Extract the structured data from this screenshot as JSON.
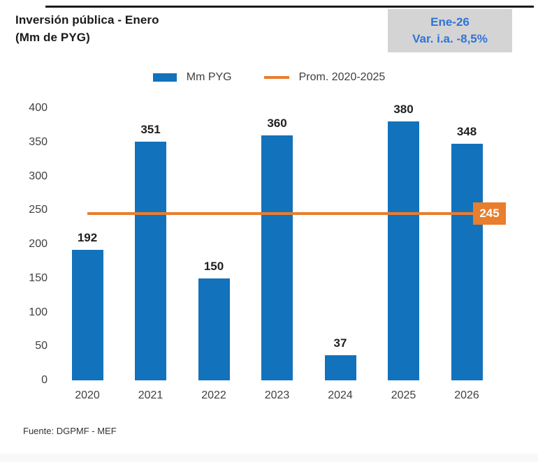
{
  "header": {
    "title_line1": "Inversión pública - Enero",
    "title_line2": "(Mm de PYG)",
    "badge": {
      "line1": "Ene-26",
      "line2": "Var. i.a. -8,5%",
      "text_color": "#2e74d8",
      "bg_color": "#d5d4d4"
    }
  },
  "legend": {
    "bar_label": "Mm PYG",
    "line_label": "Prom. 2020-2025"
  },
  "chart_data": {
    "type": "bar",
    "title": "Inversión pública - Enero (Mm de PYG)",
    "categories": [
      "2020",
      "2021",
      "2022",
      "2023",
      "2024",
      "2025",
      "2026"
    ],
    "series": [
      {
        "name": "Mm PYG",
        "values": [
          192,
          351,
          150,
          360,
          37,
          380,
          348
        ]
      }
    ],
    "average_line": {
      "name": "Prom. 2020-2025",
      "value": 245,
      "label": "245"
    },
    "xlabel": "",
    "ylabel": "",
    "ylim": [
      0,
      400
    ],
    "ytick_step": 50,
    "grid": false,
    "legend_position": "top-center",
    "bar_color": "#1272bc",
    "line_color": "#e87e2e"
  },
  "footer": {
    "source": "Fuente: DGPMF - MEF"
  }
}
